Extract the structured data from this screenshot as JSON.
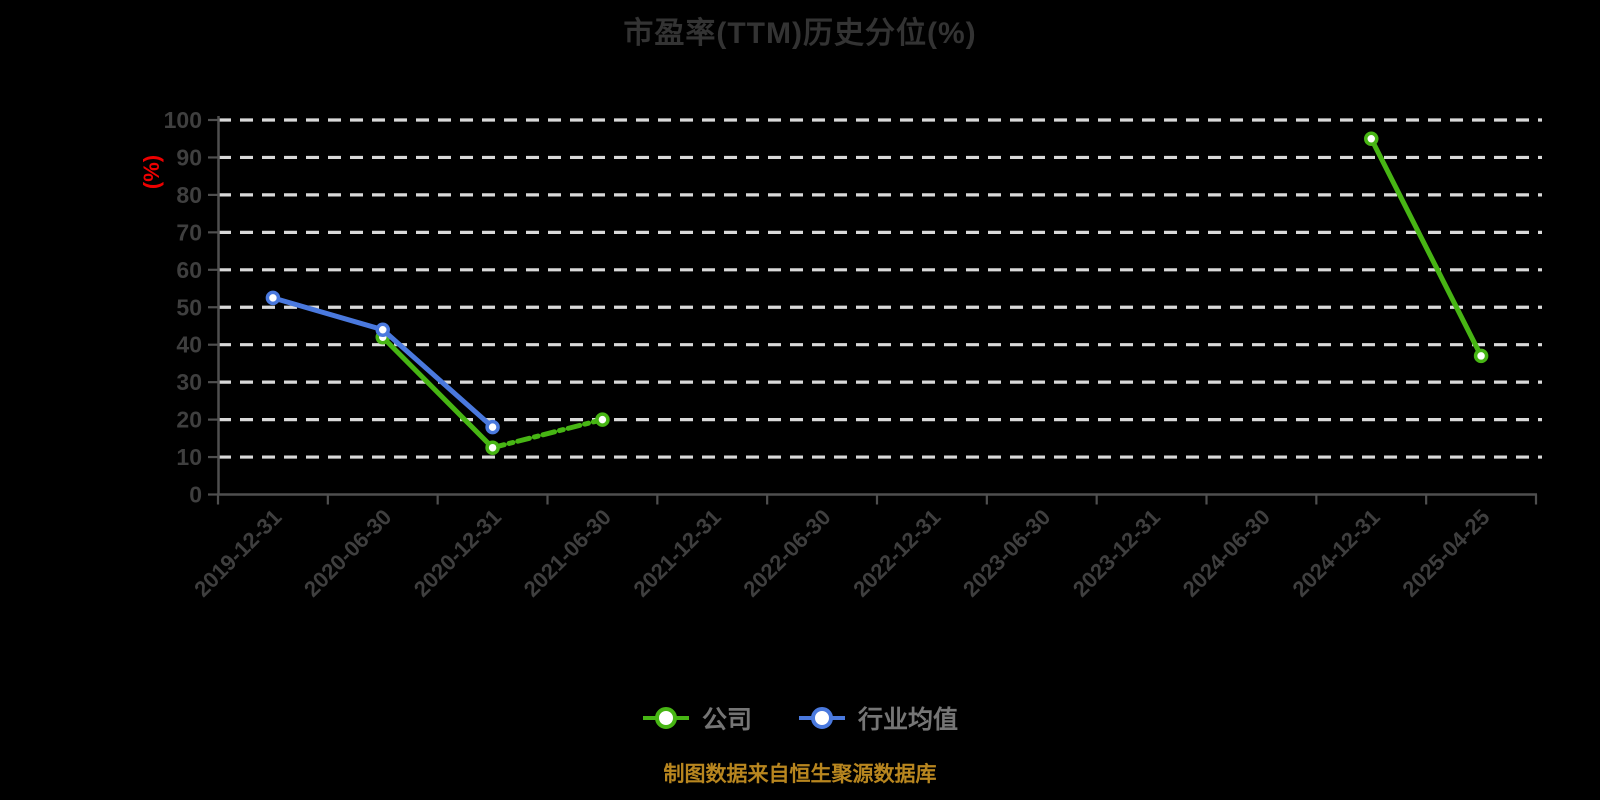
{
  "footer": {
    "text": "制图数据来自恒生聚源数据库"
  },
  "colors": {
    "background": "#000000",
    "title_text": "#333333",
    "axis_line": "#4f4f4f",
    "tick_label": "#3f3f3f",
    "gridline": "#d9d9d9",
    "y_axis_name": "#ee0000",
    "legend_text": "#757575",
    "footer_text": "#b8861f",
    "company_green": "#47b514",
    "industry_blue": "#4a79de",
    "marker_fill": "#ffffff"
  },
  "chart_data": {
    "type": "line",
    "title": "市盈率(TTM)历史分位(%)",
    "xlabel": "",
    "ylabel": "(%)",
    "ylim": [
      0,
      100
    ],
    "y_ticks": [
      0,
      10,
      20,
      30,
      40,
      50,
      60,
      70,
      80,
      90,
      100
    ],
    "grid": "horizontal-dashed",
    "legend_position": "bottom",
    "categories": [
      "2019-12-31",
      "2020-06-30",
      "2020-12-31",
      "2021-06-30",
      "2021-12-31",
      "2022-06-30",
      "2022-12-31",
      "2023-06-30",
      "2023-12-31",
      "2024-06-30",
      "2024-12-31",
      "2025-04-25"
    ],
    "series": [
      {
        "name": "公司",
        "color": "#47b514",
        "marker": "circle",
        "values": [
          null,
          42,
          12.5,
          20,
          null,
          null,
          null,
          null,
          null,
          null,
          95,
          37
        ],
        "dashed_segments": [
          [
            2,
            3
          ]
        ]
      },
      {
        "name": "行业均值",
        "color": "#4a79de",
        "marker": "circle",
        "values": [
          52.5,
          44,
          18,
          null,
          null,
          null,
          null,
          null,
          null,
          null,
          null,
          null
        ],
        "dashed_segments": []
      }
    ]
  }
}
